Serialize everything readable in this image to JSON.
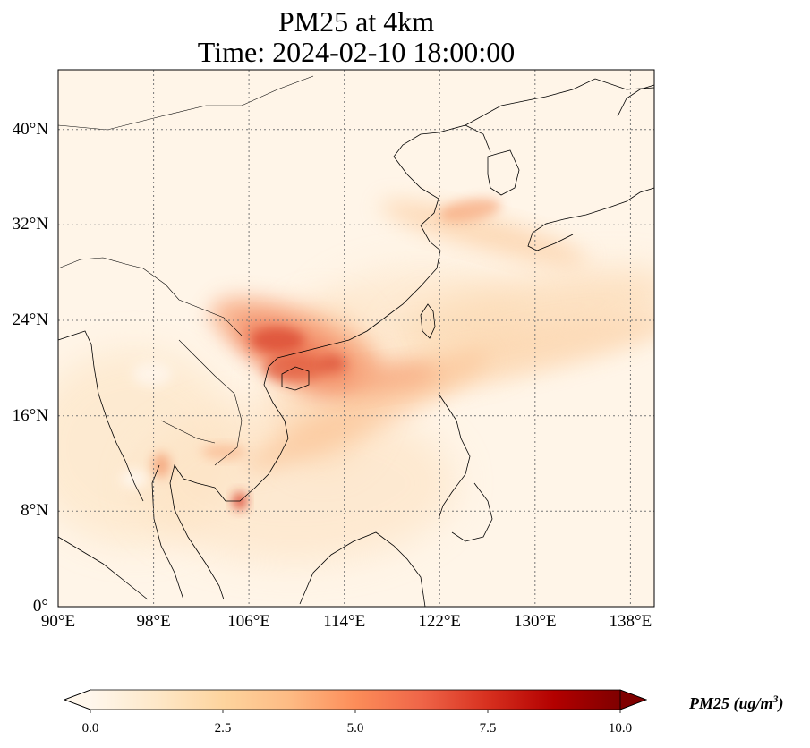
{
  "title": {
    "line1": "PM25 at 4km",
    "line2": "Time: 2024-02-10 18:00:00"
  },
  "map": {
    "projection": "PlateCarree",
    "lon_range": [
      90,
      140
    ],
    "lat_range": [
      0,
      45
    ],
    "gridlines": "dotted",
    "lat_ticks": [
      {
        "value": 0,
        "label": "0°"
      },
      {
        "value": 8,
        "label": "8°N"
      },
      {
        "value": 16,
        "label": "16°N"
      },
      {
        "value": 24,
        "label": "24°N"
      },
      {
        "value": 32,
        "label": "32°N"
      },
      {
        "value": 40,
        "label": "40°N"
      }
    ],
    "lon_ticks": [
      {
        "value": 90,
        "label": "90°E"
      },
      {
        "value": 98,
        "label": "98°E"
      },
      {
        "value": 106,
        "label": "106°E"
      },
      {
        "value": 114,
        "label": "114°E"
      },
      {
        "value": 122,
        "label": "122°E"
      },
      {
        "value": 130,
        "label": "130°E"
      },
      {
        "value": 138,
        "label": "138°E"
      }
    ]
  },
  "colorbar": {
    "colormap": "OrRd",
    "range": [
      0,
      10
    ],
    "extend": "both",
    "ticks": [
      "0.0",
      "2.5",
      "5.0",
      "7.5",
      "10.0"
    ],
    "label_main": "PM25 (ug/m",
    "label_sup": "3",
    "label_end": ")",
    "colors": [
      "#fff7ec",
      "#fee8c8",
      "#fdd49e",
      "#fdbb84",
      "#fc8d59",
      "#ef6548",
      "#d7301f",
      "#b30000",
      "#7f0000"
    ]
  }
}
